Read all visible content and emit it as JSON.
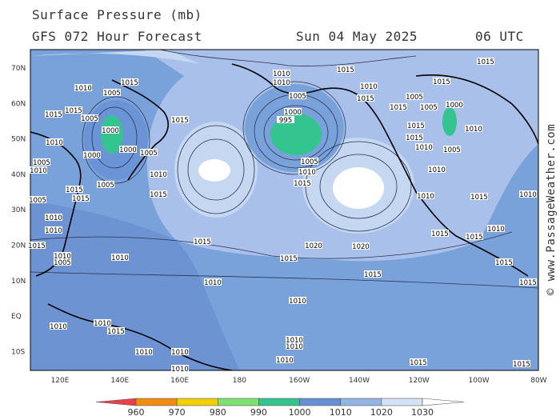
{
  "header": {
    "title": "Surface Pressure (mb)",
    "subtitle": "GFS 072 Hour Forecast",
    "date": "Sun 04 May 2025",
    "time": "06 UTC"
  },
  "map": {
    "lat_labels": [
      "70N",
      "60N",
      "50N",
      "40N",
      "30N",
      "20N",
      "10N",
      "EQ",
      "10S"
    ],
    "lon_labels": [
      "120E",
      "140E",
      "160E",
      "180",
      "160W",
      "140W",
      "120W",
      "100W",
      "80W"
    ],
    "isobar_labels": [
      "1015",
      "1015",
      "1010",
      "1010",
      "1010",
      "1015",
      "1005",
      "1010",
      "1015",
      "1005",
      "1015",
      "1005",
      "1015",
      "1005",
      "1000",
      "1015",
      "1015",
      "1005",
      "1015",
      "1000",
      "995",
      "1000",
      "1015",
      "1010",
      "1015",
      "1010",
      "1000",
      "1010",
      "1005",
      "1000",
      "1005",
      "1005",
      "1005",
      "1010",
      "1010",
      "1010",
      "1010",
      "1015",
      "1015",
      "1005",
      "1010",
      "1015",
      "1015",
      "1005",
      "1015",
      "1010",
      "1010",
      "1010",
      "1015",
      "1015",
      "1020",
      "1020",
      "1015",
      "1010",
      "1015",
      "1010",
      "1005",
      "1010",
      "1015",
      "1015",
      "1010",
      "1015",
      "1015",
      "1010",
      "1010",
      "1010",
      "1015",
      "1010",
      "1010",
      "1010",
      "1010",
      "1010",
      "1015",
      "1015",
      "1010"
    ]
  },
  "colorbar": {
    "ticks": [
      960,
      970,
      980,
      990,
      1000,
      1010,
      1020,
      1030
    ],
    "colors": [
      "#e8404a",
      "#f08c10",
      "#f2d000",
      "#7ee070",
      "#34c490",
      "#6690d4",
      "#94b4e4",
      "#d4e2f6",
      "#ffffff"
    ]
  },
  "watermark": "© www.PassageWeather.com"
}
